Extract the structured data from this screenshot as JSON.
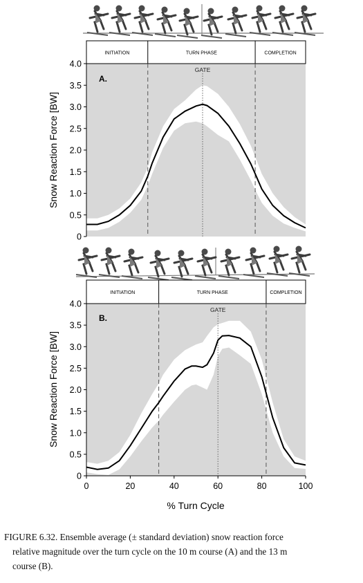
{
  "figure": {
    "caption_lines": [
      "FIGURE 6.32.  Ensemble average (± standard deviation) snow reaction force",
      "relative magnitude over the turn cycle on the 10 m course (A) and the 13 m",
      "course (B)."
    ]
  },
  "chart_data": [
    {
      "type": "area",
      "panel_label": "A.",
      "ylabel": "Snow Reaction Force [BW]",
      "ylim": [
        0,
        4.0
      ],
      "yticks": [
        "4.0",
        "3.5",
        "3.0",
        "2.5",
        "2.0",
        "1.5",
        "1.0",
        "0.5",
        "0"
      ],
      "ytick_values": [
        4.0,
        3.5,
        3.0,
        2.5,
        2.0,
        1.5,
        1.0,
        0.5,
        0
      ],
      "xlim": [
        0,
        100
      ],
      "phases": [
        {
          "label": "INITIATION",
          "start": 0,
          "end": 28
        },
        {
          "label": "TURN PHASE",
          "start": 28,
          "end": 77
        },
        {
          "label": "COMPLETION",
          "start": 77,
          "end": 100
        }
      ],
      "gate": {
        "label": "GATE",
        "x": 53
      },
      "x": [
        0,
        5,
        10,
        15,
        20,
        25,
        28,
        30,
        35,
        40,
        45,
        50,
        53,
        55,
        60,
        65,
        70,
        75,
        77,
        80,
        85,
        90,
        95,
        100
      ],
      "mean": [
        0.28,
        0.28,
        0.35,
        0.5,
        0.72,
        1.05,
        1.4,
        1.7,
        2.3,
        2.72,
        2.9,
        3.02,
        3.06,
        3.03,
        2.85,
        2.55,
        2.15,
        1.68,
        1.45,
        1.1,
        0.72,
        0.48,
        0.32,
        0.2
      ],
      "upper": [
        0.42,
        0.42,
        0.5,
        0.65,
        0.88,
        1.25,
        1.6,
        1.95,
        2.55,
        2.95,
        3.15,
        3.4,
        3.5,
        3.48,
        3.3,
        3.0,
        2.6,
        2.1,
        1.85,
        1.45,
        1.0,
        0.68,
        0.45,
        0.28
      ],
      "lower": [
        0.14,
        0.14,
        0.2,
        0.34,
        0.55,
        0.85,
        1.18,
        1.45,
        2.05,
        2.45,
        2.62,
        2.66,
        2.62,
        2.55,
        2.35,
        2.2,
        1.78,
        1.3,
        1.08,
        0.78,
        0.48,
        0.3,
        0.2,
        0.12
      ]
    },
    {
      "type": "area",
      "panel_label": "B.",
      "ylabel": "Snow Reaction Force [BW]",
      "xlabel": "% Turn Cycle",
      "ylim": [
        0,
        4.0
      ],
      "yticks": [
        "4.0",
        "3.5",
        "3.0",
        "2.5",
        "2.0",
        "1.5",
        "1.0",
        "0.5",
        "0"
      ],
      "ytick_values": [
        4.0,
        3.5,
        3.0,
        2.5,
        2.0,
        1.5,
        1.0,
        0.5,
        0
      ],
      "xlim": [
        0,
        100
      ],
      "xticks": [
        "0",
        "20",
        "40",
        "60",
        "80",
        "100"
      ],
      "xtick_values": [
        0,
        20,
        40,
        60,
        80,
        100
      ],
      "phases": [
        {
          "label": "INITIATION",
          "start": 0,
          "end": 33
        },
        {
          "label": "TURN PHASE",
          "start": 33,
          "end": 82
        },
        {
          "label": "COMPLETION",
          "start": 82,
          "end": 100
        }
      ],
      "gate": {
        "label": "GATE",
        "x": 60
      },
      "x": [
        0,
        5,
        10,
        15,
        20,
        25,
        30,
        33,
        35,
        40,
        45,
        48,
        50,
        53,
        55,
        58,
        60,
        62,
        65,
        70,
        75,
        80,
        85,
        90,
        95,
        100
      ],
      "mean": [
        0.2,
        0.15,
        0.18,
        0.35,
        0.7,
        1.1,
        1.5,
        1.7,
        1.85,
        2.2,
        2.48,
        2.55,
        2.55,
        2.52,
        2.58,
        2.85,
        3.15,
        3.25,
        3.26,
        3.2,
        3.0,
        2.3,
        1.35,
        0.65,
        0.3,
        0.25
      ],
      "upper": [
        0.32,
        0.28,
        0.35,
        0.55,
        0.95,
        1.45,
        1.9,
        2.15,
        2.35,
        2.7,
        2.92,
        3.0,
        3.05,
        3.1,
        3.25,
        3.45,
        3.52,
        3.55,
        3.6,
        3.6,
        3.35,
        2.7,
        1.7,
        0.85,
        0.45,
        0.35
      ],
      "lower": [
        0.08,
        0.04,
        0.02,
        0.15,
        0.45,
        0.8,
        1.12,
        1.28,
        1.42,
        1.72,
        2.0,
        2.1,
        2.12,
        2.05,
        2.0,
        2.35,
        2.78,
        2.95,
        2.98,
        2.8,
        2.6,
        1.9,
        1.0,
        0.45,
        0.18,
        0.16
      ]
    }
  ]
}
